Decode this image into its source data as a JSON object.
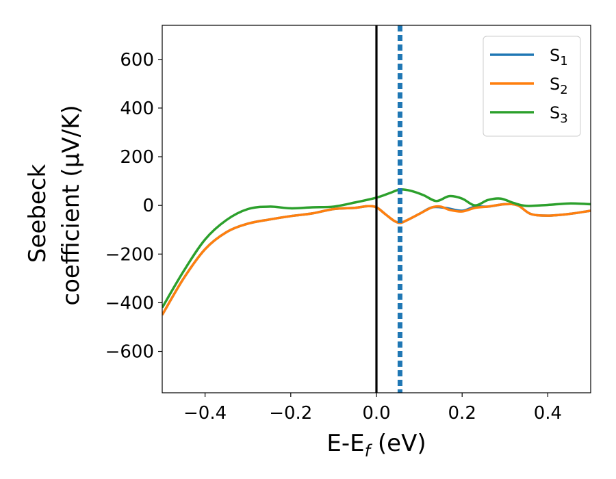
{
  "chart_data": {
    "type": "line",
    "xlabel": "E-E",
    "xlabel_sub": "f",
    "xlabel_unit": " (eV)",
    "ylabel_line1": "Seebeck",
    "ylabel_line2": "coefficient  (μV/K)",
    "xlim": [
      -0.5,
      0.5
    ],
    "ylim": [
      -770,
      740
    ],
    "grid": false,
    "legend_position": "top-right",
    "x_ticks": [
      -0.4,
      -0.2,
      0.0,
      0.2,
      0.4
    ],
    "x_tick_labels": [
      "−0.4",
      "−0.2",
      "0.0",
      "0.2",
      "0.4"
    ],
    "y_ticks": [
      600,
      400,
      200,
      0,
      -200,
      -400,
      -600
    ],
    "y_tick_labels": [
      "600",
      "400",
      "200",
      "0",
      "−200",
      "−400",
      "−600"
    ],
    "reference_lines": [
      {
        "x": 0.0,
        "style": "solid",
        "color": "#000000"
      },
      {
        "x": 0.055,
        "style": "dashed",
        "color": "#1f77b4"
      }
    ],
    "series": [
      {
        "name": "S",
        "sub": "1",
        "color": "#1f77b4",
        "points": [
          [
            -0.5,
            -450
          ],
          [
            -0.45,
            -300
          ],
          [
            -0.4,
            -180
          ],
          [
            -0.35,
            -110
          ],
          [
            -0.3,
            -75
          ],
          [
            -0.25,
            -58
          ],
          [
            -0.2,
            -44
          ],
          [
            -0.15,
            -33
          ],
          [
            -0.1,
            -15
          ],
          [
            -0.05,
            -10
          ],
          [
            -0.02,
            -3
          ],
          [
            0.0,
            -8
          ],
          [
            0.02,
            -35
          ],
          [
            0.04,
            -62
          ],
          [
            0.055,
            -72
          ],
          [
            0.07,
            -62
          ],
          [
            0.1,
            -35
          ],
          [
            0.13,
            -8
          ],
          [
            0.16,
            -10
          ],
          [
            0.2,
            -22
          ],
          [
            0.23,
            -5
          ],
          [
            0.26,
            -5
          ],
          [
            0.3,
            5
          ],
          [
            0.33,
            0
          ],
          [
            0.36,
            -35
          ],
          [
            0.4,
            -42
          ],
          [
            0.45,
            -35
          ],
          [
            0.5,
            -22
          ]
        ]
      },
      {
        "name": "S",
        "sub": "2",
        "color": "#ff7f0e",
        "points": [
          [
            -0.5,
            -450
          ],
          [
            -0.45,
            -300
          ],
          [
            -0.4,
            -180
          ],
          [
            -0.35,
            -110
          ],
          [
            -0.3,
            -75
          ],
          [
            -0.25,
            -58
          ],
          [
            -0.2,
            -44
          ],
          [
            -0.15,
            -33
          ],
          [
            -0.1,
            -15
          ],
          [
            -0.05,
            -10
          ],
          [
            -0.02,
            -3
          ],
          [
            0.0,
            -8
          ],
          [
            0.02,
            -35
          ],
          [
            0.04,
            -62
          ],
          [
            0.055,
            -72
          ],
          [
            0.07,
            -62
          ],
          [
            0.1,
            -35
          ],
          [
            0.13,
            -8
          ],
          [
            0.15,
            -5
          ],
          [
            0.17,
            -18
          ],
          [
            0.2,
            -25
          ],
          [
            0.23,
            -10
          ],
          [
            0.26,
            -5
          ],
          [
            0.3,
            5
          ],
          [
            0.33,
            0
          ],
          [
            0.36,
            -35
          ],
          [
            0.4,
            -42
          ],
          [
            0.45,
            -35
          ],
          [
            0.5,
            -22
          ]
        ]
      },
      {
        "name": "S",
        "sub": "3",
        "color": "#2ca02c",
        "points": [
          [
            -0.5,
            -420
          ],
          [
            -0.45,
            -270
          ],
          [
            -0.4,
            -140
          ],
          [
            -0.35,
            -60
          ],
          [
            -0.3,
            -15
          ],
          [
            -0.25,
            -5
          ],
          [
            -0.2,
            -12
          ],
          [
            -0.15,
            -8
          ],
          [
            -0.1,
            -5
          ],
          [
            -0.05,
            12
          ],
          [
            0.0,
            32
          ],
          [
            0.03,
            50
          ],
          [
            0.055,
            65
          ],
          [
            0.08,
            60
          ],
          [
            0.11,
            42
          ],
          [
            0.14,
            18
          ],
          [
            0.17,
            38
          ],
          [
            0.2,
            28
          ],
          [
            0.23,
            0
          ],
          [
            0.26,
            22
          ],
          [
            0.29,
            28
          ],
          [
            0.32,
            10
          ],
          [
            0.35,
            -2
          ],
          [
            0.4,
            2
          ],
          [
            0.45,
            8
          ],
          [
            0.5,
            5
          ]
        ]
      }
    ]
  }
}
